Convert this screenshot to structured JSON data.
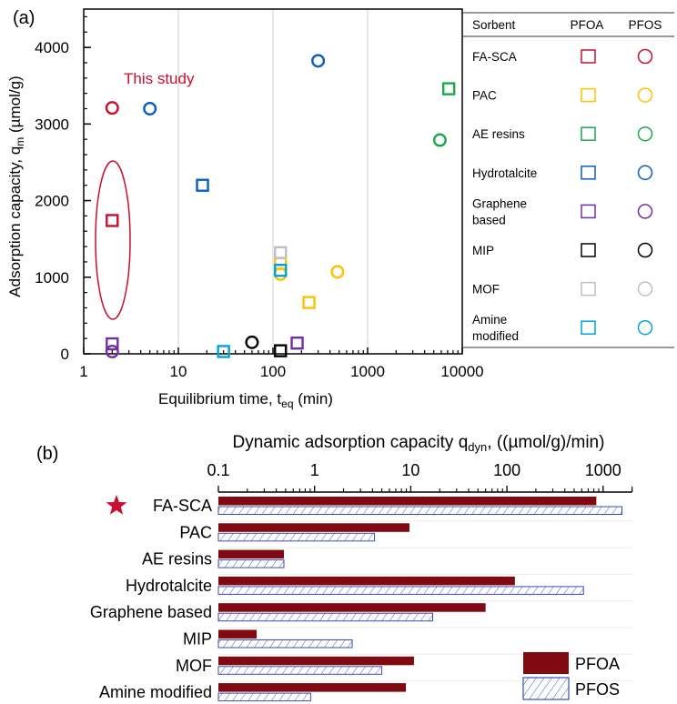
{
  "chart_data": [
    {
      "type": "scatter",
      "panel_label": "(a)",
      "xlabel": "Equilibrium time, t",
      "xlabel_sub": "eq",
      "xlabel_unit": " (min)",
      "ylabel": "Adsorption capacity, q",
      "ylabel_sub": "m",
      "ylabel_unit": "  (µmol/g)",
      "xscale": "log",
      "xlim": [
        1,
        10000
      ],
      "ylim": [
        0,
        4500
      ],
      "xticks": [
        "1",
        "10",
        "100",
        "1000",
        "10000"
      ],
      "yticks": [
        "0",
        "1000",
        "2000",
        "3000",
        "4000"
      ],
      "grid": "vertical",
      "annotation": "This study",
      "legend": {
        "headers": [
          "Sorbent",
          "PFOA",
          "PFOS"
        ],
        "placement": "right",
        "entries": [
          {
            "name": "FA-SCA",
            "lines": [
              "FA-SCA"
            ],
            "color": "#c8102e"
          },
          {
            "name": "PAC",
            "lines": [
              "PAC"
            ],
            "color": "#ffc000"
          },
          {
            "name": "AE resins",
            "lines": [
              "AE resins"
            ],
            "color": "#1aa84a"
          },
          {
            "name": "Hydrotalcite",
            "lines": [
              "Hydrotalcite"
            ],
            "color": "#0a5cc0"
          },
          {
            "name": "Graphene based",
            "lines": [
              "Graphene",
              "based"
            ],
            "color": "#7030a0"
          },
          {
            "name": "MIP",
            "lines": [
              "MIP"
            ],
            "color": "#000000"
          },
          {
            "name": "MOF",
            "lines": [
              "MOF"
            ],
            "color": "#bfbfbf"
          },
          {
            "name": "Amine modified",
            "lines": [
              "Amine",
              "modified"
            ],
            "color": "#00a3d9"
          }
        ]
      },
      "series": [
        {
          "sorbent": "FA-SCA",
          "compound": "PFOA",
          "points": [
            [
              2,
              1740
            ]
          ]
        },
        {
          "sorbent": "FA-SCA",
          "compound": "PFOS",
          "points": [
            [
              2,
              3210
            ]
          ]
        },
        {
          "sorbent": "PAC",
          "compound": "PFOA",
          "points": [
            [
              120,
              1180
            ],
            [
              240,
              670
            ]
          ]
        },
        {
          "sorbent": "PAC",
          "compound": "PFOS",
          "points": [
            [
              120,
              1040
            ],
            [
              480,
              1070
            ]
          ]
        },
        {
          "sorbent": "AE resins",
          "compound": "PFOA",
          "points": [
            [
              7200,
              3460
            ]
          ]
        },
        {
          "sorbent": "AE resins",
          "compound": "PFOS",
          "points": [
            [
              5800,
              2790
            ]
          ]
        },
        {
          "sorbent": "Hydrotalcite",
          "compound": "PFOA",
          "points": [
            [
              18,
              2200
            ]
          ]
        },
        {
          "sorbent": "Hydrotalcite",
          "compound": "PFOS",
          "points": [
            [
              5,
              3200
            ],
            [
              300,
              3825
            ]
          ]
        },
        {
          "sorbent": "Graphene based",
          "compound": "PFOA",
          "points": [
            [
              2,
              130
            ],
            [
              180,
              140
            ]
          ]
        },
        {
          "sorbent": "Graphene based",
          "compound": "PFOS",
          "points": [
            [
              2,
              30
            ]
          ]
        },
        {
          "sorbent": "MIP",
          "compound": "PFOA",
          "points": [
            [
              120,
              40
            ]
          ]
        },
        {
          "sorbent": "MIP",
          "compound": "PFOS",
          "points": [
            [
              60,
              150
            ]
          ]
        },
        {
          "sorbent": "MOF",
          "compound": "PFOA",
          "points": [
            [
              120,
              1320
            ]
          ]
        },
        {
          "sorbent": "Amine modified",
          "compound": "PFOA",
          "points": [
            [
              30,
              30
            ],
            [
              120,
              1090
            ]
          ]
        }
      ]
    },
    {
      "type": "bar",
      "orientation": "horizontal",
      "panel_label": "(b)",
      "title": "Dynamic adsorption capacity q",
      "title_sub": "dyn",
      "title_unit": ", ((µmol/g)/min)",
      "xscale": "log",
      "xlim": [
        0.1,
        2000
      ],
      "xticks": [
        "0.1",
        "1",
        "10",
        "100",
        "1000"
      ],
      "highlight": "FA-SCA",
      "categories": [
        "FA-SCA",
        "PAC",
        "AE resins",
        "Hydrotalcite",
        "Graphene based",
        "MIP",
        "MOF",
        "Amine modified"
      ],
      "series": [
        {
          "name": "PFOA",
          "color": "#7f0a12",
          "values": [
            850,
            9.7,
            0.48,
            121,
            60,
            0.25,
            10.8,
            8.9
          ]
        },
        {
          "name": "PFOS",
          "color": "#3a4bb0",
          "pattern": "hatch",
          "values": [
            1570,
            4.2,
            0.48,
            625,
            16.9,
            2.46,
            5.0,
            0.91
          ]
        }
      ],
      "legend_placement": "bottom-right"
    }
  ]
}
